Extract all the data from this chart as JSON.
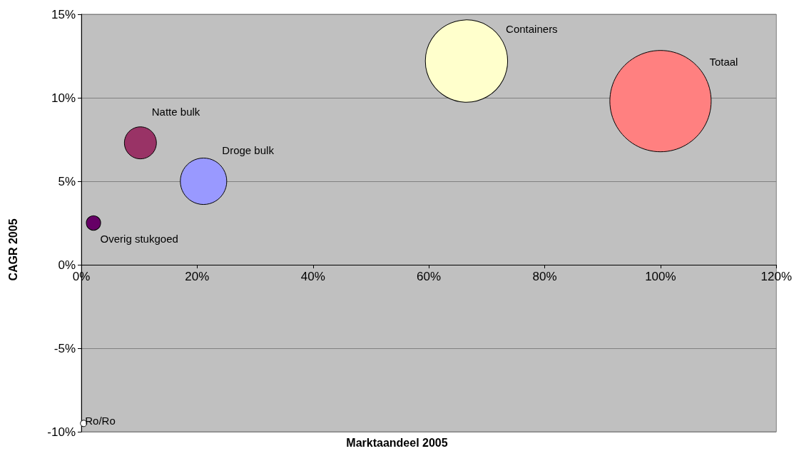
{
  "chart_data": {
    "type": "bubble",
    "xlabel": "Marktaandeel 2005",
    "ylabel": "CAGR 2005",
    "xlim": [
      0,
      120
    ],
    "xticks": [
      {
        "value": 0,
        "label": "0%"
      },
      {
        "value": 20,
        "label": "20%"
      },
      {
        "value": 40,
        "label": "40%"
      },
      {
        "value": 60,
        "label": "60%"
      },
      {
        "value": 80,
        "label": "80%"
      },
      {
        "value": 100,
        "label": "100%"
      },
      {
        "value": 120,
        "label": "120%"
      }
    ],
    "ylim": [
      -10,
      15
    ],
    "yticks": [
      {
        "value": -10,
        "label": "-10%"
      },
      {
        "value": -5,
        "label": "-5%"
      },
      {
        "value": 0,
        "label": "0%"
      },
      {
        "value": 5,
        "label": "5%"
      },
      {
        "value": 10,
        "label": "10%"
      },
      {
        "value": 15,
        "label": "15%"
      }
    ],
    "grid": "y",
    "legend": false,
    "series": [
      {
        "name": "Overig stukgoed",
        "color": "#660066",
        "x": [
          2.1
        ],
        "values": [
          2.5
        ],
        "sizes": [
          0.02
        ]
      },
      {
        "name": "Natte bulk",
        "color": "#993366",
        "x": [
          10.2
        ],
        "values": [
          7.3
        ],
        "sizes": [
          0.1
        ]
      },
      {
        "name": "Droge bulk",
        "color": "#9999ff",
        "x": [
          21.1
        ],
        "values": [
          5.0
        ],
        "sizes": [
          0.21
        ]
      },
      {
        "name": "Containers",
        "color": "#ffffcc",
        "x": [
          66.5
        ],
        "values": [
          12.2
        ],
        "sizes": [
          0.66
        ]
      },
      {
        "name": "Totaal",
        "color": "#ff8080",
        "x": [
          100
        ],
        "values": [
          9.8
        ],
        "sizes": [
          1
        ]
      },
      {
        "name": "Ro/Ro",
        "color": "#ffffff",
        "x": [
          0.4
        ],
        "values": [
          -9.5
        ],
        "sizes": [
          0.004
        ]
      }
    ]
  }
}
